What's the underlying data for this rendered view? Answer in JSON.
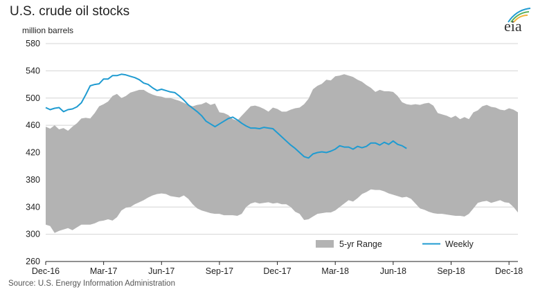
{
  "header": {
    "title": "U.S. crude oil stocks",
    "unit": "million barrels"
  },
  "source": "Source: U.S. Energy Information Administration",
  "logo": {
    "text": "eia"
  },
  "colors": {
    "range": "#b3b3b3",
    "weekly": "#1f9bd1",
    "grid": "#d4d4d4",
    "axis": "#222222"
  },
  "chart_data": {
    "type": "line",
    "ylim": [
      260,
      580
    ],
    "yticks": [
      260,
      300,
      340,
      380,
      420,
      460,
      500,
      540,
      580
    ],
    "xlim": [
      0,
      106
    ],
    "xticks": [
      {
        "label": "Dec-16",
        "week": 0
      },
      {
        "label": "Mar-17",
        "week": 13
      },
      {
        "label": "Jun-17",
        "week": 26
      },
      {
        "label": "Sep-17",
        "week": 39
      },
      {
        "label": "Dec-17",
        "week": 52
      },
      {
        "label": "Mar-18",
        "week": 65
      },
      {
        "label": "Jun-18",
        "week": 78
      },
      {
        "label": "Sep-18",
        "week": 91
      },
      {
        "label": "Dec-18",
        "week": 104
      }
    ],
    "grid": true,
    "legend": {
      "position": "bottom-right",
      "entries": [
        {
          "label": "5-yr Range",
          "type": "area"
        },
        {
          "label": "Weekly",
          "type": "line"
        }
      ]
    },
    "series": [
      {
        "name": "5-yr Range",
        "type": "range",
        "x": [
          0,
          1,
          2,
          3,
          4,
          5,
          6,
          7,
          8,
          9,
          10,
          11,
          12,
          13,
          14,
          15,
          16,
          17,
          18,
          19,
          20,
          21,
          22,
          23,
          24,
          25,
          26,
          27,
          28,
          29,
          30,
          31,
          32,
          33,
          34,
          35,
          36,
          37,
          38,
          39,
          40,
          41,
          42,
          43,
          44,
          45,
          46,
          47,
          48,
          49,
          50,
          51,
          52,
          53,
          54,
          55,
          56,
          57,
          58,
          59,
          60,
          61,
          62,
          63,
          64,
          65,
          66,
          67,
          68,
          69,
          70,
          71,
          72,
          73,
          74,
          75,
          76,
          77,
          78,
          79,
          80,
          81,
          82,
          83,
          84,
          85,
          86,
          87,
          88,
          89,
          90,
          91,
          92,
          93,
          94,
          95,
          96,
          97,
          98,
          99,
          100,
          101,
          102,
          103,
          104,
          105,
          106
        ],
        "low": [
          314,
          312,
          302,
          305,
          307,
          309,
          306,
          310,
          314,
          314,
          314,
          316,
          319,
          320,
          322,
          320,
          325,
          335,
          339,
          340,
          344,
          347,
          350,
          354,
          357,
          359,
          360,
          359,
          356,
          355,
          354,
          357,
          352,
          344,
          338,
          335,
          333,
          331,
          330,
          330,
          328,
          328,
          328,
          327,
          330,
          340,
          345,
          347,
          345,
          346,
          347,
          345,
          346,
          344,
          344,
          340,
          333,
          330,
          321,
          322,
          326,
          330,
          331,
          332,
          332,
          335,
          340,
          345,
          350,
          348,
          353,
          359,
          362,
          366,
          365,
          365,
          363,
          360,
          358,
          356,
          354,
          355,
          352,
          345,
          338,
          336,
          333,
          331,
          330,
          330,
          329,
          328,
          327,
          327,
          326,
          330,
          338,
          346,
          348,
          349,
          346,
          348,
          350,
          347,
          346,
          340,
          332
        ],
        "high": [
          458,
          455,
          460,
          454,
          456,
          452,
          458,
          463,
          470,
          471,
          470,
          478,
          488,
          491,
          495,
          503,
          506,
          500,
          503,
          508,
          510,
          512,
          512,
          508,
          505,
          503,
          502,
          500,
          500,
          498,
          496,
          493,
          490,
          488,
          490,
          491,
          494,
          490,
          492,
          479,
          478,
          475,
          469,
          467,
          474,
          481,
          488,
          489,
          487,
          484,
          480,
          486,
          484,
          480,
          480,
          483,
          485,
          486,
          491,
          499,
          513,
          518,
          521,
          527,
          526,
          532,
          533,
          535,
          533,
          531,
          527,
          524,
          519,
          515,
          509,
          512,
          510,
          510,
          509,
          503,
          494,
          491,
          490,
          491,
          490,
          492,
          493,
          489,
          478,
          476,
          474,
          471,
          474,
          469,
          472,
          469,
          479,
          482,
          488,
          490,
          487,
          486,
          483,
          482,
          485,
          483,
          479
        ]
      },
      {
        "name": "Weekly",
        "type": "line",
        "x": [
          0,
          1,
          2,
          3,
          4,
          5,
          6,
          7,
          8,
          9,
          10,
          11,
          12,
          13,
          14,
          15,
          16,
          17,
          18,
          19,
          20,
          21,
          22,
          23,
          24,
          25,
          26,
          27,
          28,
          29,
          30,
          31,
          32,
          33,
          34,
          35,
          36,
          37,
          38,
          39,
          40,
          41,
          42,
          43,
          44,
          45,
          46,
          47,
          48,
          49,
          50,
          51,
          52,
          53,
          54,
          55,
          56,
          57,
          58,
          59,
          60,
          61,
          62,
          63,
          64,
          65,
          66,
          67,
          68,
          69,
          70,
          71,
          72,
          73,
          74,
          75,
          76,
          77,
          78,
          79,
          80,
          81
        ],
        "values": [
          486,
          483,
          485,
          486,
          480,
          483,
          484,
          487,
          493,
          505,
          518,
          520,
          521,
          528,
          528,
          533,
          533,
          535,
          534,
          532,
          530,
          527,
          522,
          520,
          515,
          511,
          513,
          511,
          509,
          508,
          503,
          497,
          490,
          485,
          480,
          474,
          466,
          462,
          458,
          462,
          466,
          470,
          472,
          468,
          463,
          459,
          456,
          456,
          455,
          457,
          456,
          455,
          449,
          443,
          437,
          431,
          426,
          420,
          414,
          412,
          418,
          420,
          421,
          420,
          422,
          425,
          430,
          428,
          428,
          425,
          429,
          427,
          429,
          434,
          434,
          431,
          435,
          432,
          437,
          432,
          430,
          426
        ]
      }
    ]
  }
}
